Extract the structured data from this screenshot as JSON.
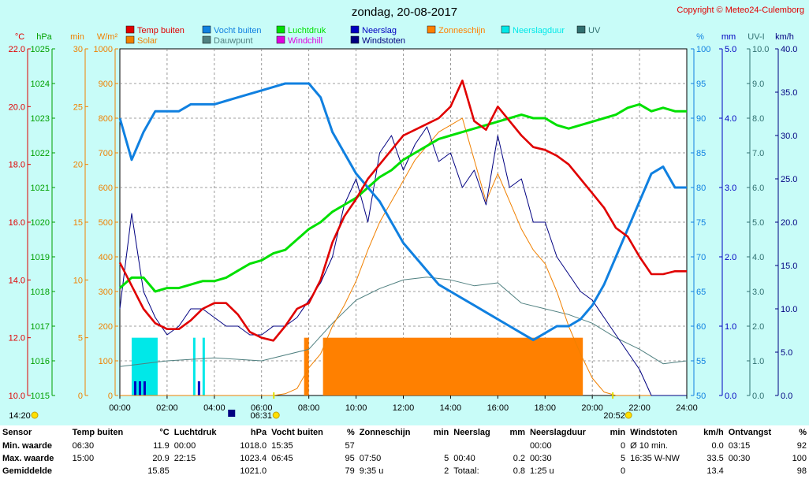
{
  "header": {
    "title": "zondag, 20-08-2017",
    "copyright": "Copyright © Meteo24-Culemborg"
  },
  "colors": {
    "temp": "#e00000",
    "humidity": "#1080e0",
    "pressure": "#00e000",
    "rain": "#0000c0",
    "sun": "#ff8000",
    "raindur": "#00e8e8",
    "uv": "#307070",
    "solar": "#f08000",
    "dewpoint": "#508080",
    "windchill": "#e000e0",
    "gust": "#000080",
    "bg": "#c8fcf8",
    "plot": "#ffffff"
  },
  "legend": [
    {
      "label": "Temp buiten",
      "color": "#e00000"
    },
    {
      "label": "Vocht buiten",
      "color": "#1080e0"
    },
    {
      "label": "Luchtdruk",
      "color": "#00e000"
    },
    {
      "label": "Neerslag",
      "color": "#0000c0"
    },
    {
      "label": "Zonneschijn",
      "color": "#ff8000"
    },
    {
      "label": "Neerslagduur",
      "color": "#00e8e8"
    },
    {
      "label": "UV",
      "color": "#307070"
    },
    {
      "label": "Solar",
      "color": "#f08000"
    },
    {
      "label": "Dauwpunt",
      "color": "#508080"
    },
    {
      "label": "Windchill",
      "color": "#e000e0"
    },
    {
      "label": "Windstoten",
      "color": "#000080"
    }
  ],
  "chart_data": {
    "type": "line",
    "title": "zondag, 20-08-2017",
    "x_ticks": [
      "00:00",
      "02:00",
      "04:00",
      "06:00",
      "08:00",
      "10:00",
      "12:00",
      "14:00",
      "16:00",
      "18:00",
      "20:00",
      "22:00",
      "24:00"
    ],
    "x_range_hours": [
      0,
      24
    ],
    "axes_left": [
      {
        "unit": "°C",
        "ticks": [
          "10.0",
          "12.0",
          "14.0",
          "16.0",
          "18.0",
          "20.0",
          "22.0"
        ],
        "range": [
          10,
          22
        ],
        "color": "#e00000"
      },
      {
        "unit": "hPa",
        "ticks": [
          "1015",
          "1016",
          "1017",
          "1018",
          "1019",
          "1020",
          "1021",
          "1022",
          "1023",
          "1024",
          "1025"
        ],
        "range": [
          1015,
          1025
        ],
        "color": "#00a000"
      },
      {
        "unit": "min",
        "ticks": [
          "0",
          "5",
          "10",
          "15",
          "20",
          "25",
          "30"
        ],
        "range": [
          0,
          30
        ],
        "color": "#f08000"
      },
      {
        "unit": "W/m²",
        "ticks": [
          "0",
          "100",
          "200",
          "300",
          "400",
          "500",
          "600",
          "700",
          "800",
          "900",
          "1000"
        ],
        "range": [
          0,
          1000
        ],
        "color": "#f08000"
      }
    ],
    "axes_right": [
      {
        "unit": "%",
        "ticks": [
          "50",
          "55",
          "60",
          "65",
          "70",
          "75",
          "80",
          "85",
          "90",
          "95",
          "100"
        ],
        "range": [
          50,
          100
        ],
        "color": "#1080e0"
      },
      {
        "unit": "mm",
        "ticks": [
          "0.0",
          "1.0",
          "2.0",
          "3.0",
          "4.0",
          "5.0"
        ],
        "range": [
          0,
          5
        ],
        "color": "#0000c0"
      },
      {
        "unit": "UV-I",
        "ticks": [
          "0.0",
          "1.0",
          "2.0",
          "3.0",
          "4.0",
          "5.0",
          "6.0",
          "7.0",
          "8.0",
          "9.0",
          "10.0"
        ],
        "range": [
          0,
          10
        ],
        "color": "#307070"
      },
      {
        "unit": "km/h",
        "ticks": [
          "0.0",
          "5.0",
          "10.0",
          "15.0",
          "20.0",
          "25.0",
          "30.0",
          "35.0",
          "40.0"
        ],
        "range": [
          0,
          40
        ],
        "color": "#000080"
      }
    ],
    "series": [
      {
        "name": "Temp buiten",
        "unit": "°C",
        "x": [
          0,
          0.5,
          1,
          1.5,
          2,
          2.5,
          3,
          3.5,
          4,
          4.5,
          5,
          5.5,
          6,
          6.5,
          7,
          7.5,
          8,
          8.5,
          9,
          9.5,
          10,
          10.5,
          11,
          11.5,
          12,
          12.5,
          13,
          13.5,
          14,
          14.5,
          15,
          15.5,
          16,
          16.5,
          17,
          17.5,
          18,
          18.5,
          19,
          19.5,
          20,
          20.5,
          21,
          21.5,
          22,
          22.5,
          23,
          23.5,
          24
        ],
        "values": [
          14.6,
          13.8,
          13.0,
          12.5,
          12.3,
          12.3,
          12.6,
          13.0,
          13.2,
          13.2,
          12.8,
          12.2,
          12.0,
          11.9,
          12.4,
          13.0,
          13.2,
          14.0,
          15.3,
          16.2,
          16.8,
          17.5,
          18.0,
          18.5,
          19.0,
          19.2,
          19.4,
          19.6,
          20.0,
          20.9,
          19.5,
          19.2,
          20.0,
          19.5,
          19.0,
          18.6,
          18.5,
          18.3,
          18.0,
          17.5,
          17.0,
          16.5,
          15.8,
          15.5,
          14.8,
          14.2,
          14.2,
          14.3,
          14.3
        ]
      },
      {
        "name": "Vocht buiten",
        "unit": "%",
        "x": [
          0,
          0.5,
          1,
          1.5,
          2,
          2.5,
          3,
          3.5,
          4,
          4.5,
          5,
          5.5,
          6,
          6.5,
          7,
          7.5,
          8,
          8.5,
          9,
          9.5,
          10,
          10.5,
          11,
          11.5,
          12,
          12.5,
          13,
          13.5,
          14,
          14.5,
          15,
          15.5,
          16,
          16.5,
          17,
          17.5,
          18,
          18.5,
          19,
          19.5,
          20,
          20.5,
          21,
          21.5,
          22,
          22.5,
          23,
          23.5,
          24
        ],
        "values": [
          90,
          84,
          88,
          91,
          91,
          91,
          92,
          92,
          92,
          92.5,
          93,
          93.5,
          94,
          94.5,
          95,
          95,
          95,
          93,
          88,
          85,
          82,
          80,
          78,
          75,
          72,
          70,
          68,
          66,
          65,
          64,
          63,
          62,
          61,
          60,
          59,
          58,
          59,
          60,
          60,
          61,
          63,
          66,
          70,
          74,
          78,
          82,
          83,
          80,
          80
        ]
      },
      {
        "name": "Luchtdruk",
        "unit": "hPa",
        "x": [
          0,
          0.5,
          1,
          1.5,
          2,
          2.5,
          3,
          3.5,
          4,
          4.5,
          5,
          5.5,
          6,
          6.5,
          7,
          7.5,
          8,
          8.5,
          9,
          9.5,
          10,
          10.5,
          11,
          11.5,
          12,
          12.5,
          13,
          13.5,
          14,
          14.5,
          15,
          15.5,
          16,
          16.5,
          17,
          17.5,
          18,
          18.5,
          19,
          19.5,
          20,
          20.5,
          21,
          21.5,
          22,
          22.5,
          23,
          23.5,
          24
        ],
        "values": [
          1018.1,
          1018.4,
          1018.4,
          1018.0,
          1018.1,
          1018.1,
          1018.2,
          1018.3,
          1018.3,
          1018.4,
          1018.6,
          1018.8,
          1018.9,
          1019.1,
          1019.2,
          1019.5,
          1019.8,
          1020.0,
          1020.3,
          1020.5,
          1020.7,
          1021.0,
          1021.3,
          1021.5,
          1021.8,
          1022.0,
          1022.2,
          1022.4,
          1022.5,
          1022.6,
          1022.7,
          1022.8,
          1022.9,
          1023.0,
          1023.1,
          1023.0,
          1023.0,
          1022.8,
          1022.7,
          1022.8,
          1022.9,
          1023.0,
          1023.1,
          1023.3,
          1023.4,
          1023.2,
          1023.3,
          1023.2,
          1023.2
        ]
      },
      {
        "name": "Windstoten",
        "unit": "km/h",
        "x": [
          0,
          0.5,
          1,
          1.5,
          2,
          2.5,
          3,
          3.5,
          4,
          4.5,
          5,
          5.5,
          6,
          6.5,
          7,
          7.5,
          8,
          8.5,
          9,
          9.5,
          10,
          10.5,
          11,
          11.5,
          12,
          12.5,
          13,
          13.5,
          14,
          14.5,
          15,
          15.5,
          16,
          16.5,
          17,
          17.5,
          18,
          18.5,
          19,
          19.5,
          20,
          20.5,
          21,
          21.5,
          22,
          22.5,
          23,
          23.5,
          24
        ],
        "values": [
          10,
          21,
          12,
          9,
          7,
          8,
          10,
          10,
          9,
          8,
          8,
          7,
          7,
          8,
          8,
          9,
          11,
          13,
          16,
          22,
          25,
          20,
          28,
          30,
          26,
          29,
          31,
          27,
          28,
          24,
          26,
          22,
          30,
          24,
          25,
          20,
          20,
          16,
          14,
          12,
          11,
          9,
          7,
          5,
          3,
          0,
          0,
          0,
          0
        ]
      },
      {
        "name": "Solar",
        "unit": "W/m²",
        "x": [
          0,
          6.5,
          7,
          7.5,
          8,
          8.5,
          9,
          9.5,
          10,
          10.5,
          11,
          11.5,
          12,
          12.5,
          13,
          13.5,
          14,
          14.5,
          15,
          15.5,
          16,
          16.5,
          17,
          17.5,
          18,
          18.5,
          19,
          19.5,
          20,
          20.5,
          21,
          24
        ],
        "values": [
          0,
          0,
          5,
          20,
          80,
          120,
          200,
          260,
          330,
          420,
          500,
          560,
          620,
          680,
          720,
          760,
          780,
          800,
          680,
          560,
          640,
          560,
          480,
          420,
          380,
          300,
          200,
          120,
          50,
          10,
          0,
          0
        ]
      },
      {
        "name": "Dauwpunt",
        "unit": "°C",
        "x": [
          0,
          2,
          4,
          6,
          8,
          9,
          10,
          11,
          12,
          13,
          14,
          15,
          16,
          17,
          18,
          19,
          20,
          21,
          22,
          23,
          24
        ],
        "values": [
          11.0,
          11.2,
          11.3,
          11.2,
          11.6,
          12.5,
          13.3,
          13.7,
          14.0,
          14.1,
          14.0,
          13.8,
          13.9,
          13.2,
          13.0,
          12.8,
          12.5,
          12.0,
          11.6,
          11.1,
          11.2
        ]
      }
    ],
    "bars": [
      {
        "name": "Zonneschijn",
        "unit": "min",
        "intervals": [
          [
            7.8,
            8.0
          ],
          [
            8.6,
            19.6
          ]
        ],
        "value": 5
      },
      {
        "name": "Neerslagduur",
        "unit": "min",
        "intervals": [
          [
            0.5,
            1.6
          ],
          [
            3.1,
            3.2
          ],
          [
            3.5,
            3.6
          ]
        ],
        "value": 5
      },
      {
        "name": "Neerslag",
        "unit": "mm",
        "intervals": [
          [
            0.6,
            0.7
          ],
          [
            0.8,
            0.9
          ],
          [
            1.0,
            1.1
          ],
          [
            3.3,
            3.4
          ]
        ],
        "value": 0.1
      }
    ],
    "markers": {
      "sunrise": "06:31",
      "sunset": "20:52",
      "moon_left": "14:20"
    }
  },
  "stats": {
    "headers": [
      {
        "label": "Sensor"
      },
      {
        "label": "Temp buiten",
        "unit": "°C"
      },
      {
        "label": "Luchtdruk",
        "unit": "hPa"
      },
      {
        "label": "Vocht buiten",
        "unit": "%"
      },
      {
        "label": "Zonneschijn",
        "unit": "min"
      },
      {
        "label": "Neerslag",
        "unit": "mm"
      },
      {
        "label": "Neerslagduur",
        "unit": "min"
      },
      {
        "label": "Windstoten",
        "unit": "km/h"
      },
      {
        "label": "Ontvangst",
        "unit": "%"
      }
    ],
    "rows": [
      {
        "label": "Min. waarde",
        "cells": [
          [
            "06:30",
            "11.9"
          ],
          [
            "00:00",
            "1018.0"
          ],
          [
            "15:35",
            "57"
          ],
          [
            "",
            ""
          ],
          [
            "",
            ""
          ],
          [
            "00:00",
            "0"
          ],
          [
            "Ø 10 min.",
            "0.0"
          ],
          [
            "03:15",
            "92"
          ]
        ]
      },
      {
        "label": "Max. waarde",
        "cells": [
          [
            "15:00",
            "20.9"
          ],
          [
            "22:15",
            "1023.4"
          ],
          [
            "06:45",
            "95"
          ],
          [
            "07:50",
            "5"
          ],
          [
            "00:40",
            "0.2"
          ],
          [
            "00:30",
            "5"
          ],
          [
            "16:35  W-NW",
            "33.5"
          ],
          [
            "00:30",
            "100"
          ]
        ]
      },
      {
        "label": "Gemiddelde",
        "cells": [
          [
            "",
            "15.85"
          ],
          [
            "",
            "1021.0"
          ],
          [
            "",
            "79"
          ],
          [
            "9:35 u",
            "2"
          ],
          [
            "Totaal:",
            "0.8"
          ],
          [
            "1:25 u",
            "0"
          ],
          [
            "",
            "13.4"
          ],
          [
            "",
            "98"
          ]
        ]
      }
    ]
  }
}
